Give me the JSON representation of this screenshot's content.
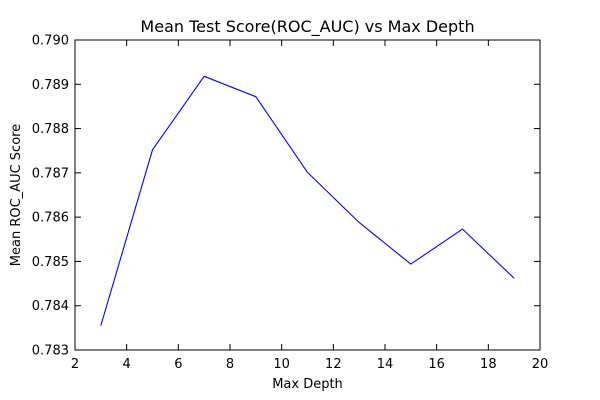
{
  "chart_data": {
    "type": "line",
    "title": "Mean Test Score(ROC_AUC) vs Max Depth",
    "xlabel": "Max Depth",
    "ylabel": "Mean ROC_AUC Score",
    "xlim": [
      2,
      20
    ],
    "ylim": [
      0.783,
      0.79
    ],
    "x_ticks": [
      "2",
      "4",
      "6",
      "8",
      "10",
      "12",
      "14",
      "16",
      "18",
      "20"
    ],
    "y_ticks": [
      "0.783",
      "0.784",
      "0.785",
      "0.786",
      "0.787",
      "0.788",
      "0.789",
      "0.790"
    ],
    "grid": false,
    "series": [
      {
        "color": "#0000ff",
        "x": [
          3,
          5,
          7,
          9,
          11,
          13,
          15,
          17,
          19
        ],
        "y": [
          0.78355,
          0.78752,
          0.78918,
          0.78872,
          0.78701,
          0.78588,
          0.78494,
          0.78573,
          0.78462
        ]
      }
    ]
  }
}
